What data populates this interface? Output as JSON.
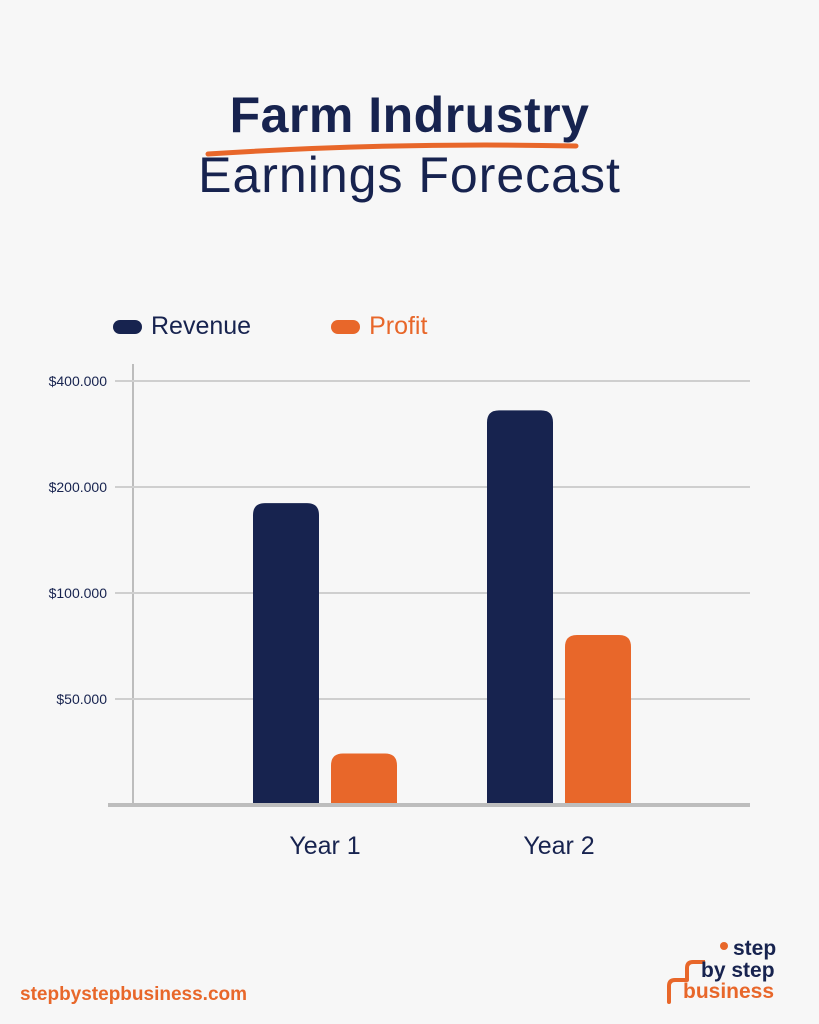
{
  "title": {
    "line1": "Farm Indrustry",
    "line2": "Earnings Forecast"
  },
  "colors": {
    "revenue": "#17234f",
    "profit": "#e8672a",
    "grid": "#cfcfcf",
    "axis": "#bdbdbd",
    "text": "#17234f",
    "accent": "#e8672a"
  },
  "legend": [
    {
      "name": "Revenue",
      "color": "#17234f"
    },
    {
      "name": "Profit",
      "color": "#e8672a"
    }
  ],
  "chart_data": {
    "type": "bar",
    "categories": [
      "Year 1",
      "Year 2"
    ],
    "y_ticks": [
      "$400.000",
      "$200.000",
      "$100.000",
      "$50.000"
    ],
    "y_scale": "log2",
    "ylim": [
      25000,
      400000
    ],
    "grid": true,
    "legend_position": "top-left",
    "series": [
      {
        "name": "Revenue",
        "values": [
          180000,
          330000
        ]
      },
      {
        "name": "Profit",
        "values": [
          35000,
          76000
        ]
      }
    ]
  },
  "footer": {
    "url": "stepbystepbusiness.com",
    "logo_line1": "step",
    "logo_line2": "by step",
    "logo_line3": "business"
  }
}
